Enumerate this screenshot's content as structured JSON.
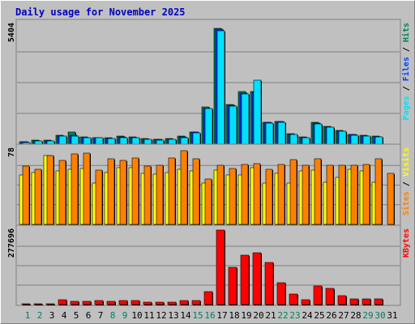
{
  "title": "Daily usage for November 2025",
  "colors": {
    "background": "#c0c0c0",
    "hits": "#00805c",
    "files": "#0040ff",
    "pages": "#00e0ff",
    "visits": "#ffff00",
    "sites": "#ff8000",
    "kbytes": "#ff0000",
    "weekend_day": "#00805c",
    "weekday": "#000000",
    "title": "#0000c0"
  },
  "chart_data": [
    {
      "type": "bar",
      "panel": "hits-files-pages",
      "ylabel_parts": [
        {
          "text": "Pages",
          "color": "#00e0ff"
        },
        {
          "text": " / ",
          "color": "#000000"
        },
        {
          "text": "Files",
          "color": "#0040ff"
        },
        {
          "text": " / ",
          "color": "#000000"
        },
        {
          "text": "Hits",
          "color": "#00805c"
        }
      ],
      "max_label": "5404",
      "ylim": [
        0,
        5404
      ],
      "categories": [
        "1",
        "2",
        "3",
        "4",
        "5",
        "6",
        "7",
        "8",
        "9",
        "10",
        "11",
        "12",
        "13",
        "14",
        "15",
        "16",
        "17",
        "18",
        "19",
        "20",
        "21",
        "22",
        "23",
        "24",
        "25",
        "26",
        "27",
        "28",
        "29",
        "30",
        "31"
      ],
      "series": [
        {
          "name": "Hits",
          "values": [
            110,
            180,
            170,
            390,
            530,
            330,
            310,
            290,
            360,
            340,
            250,
            230,
            250,
            360,
            560,
            1680,
            5230,
            1800,
            2380,
            2380,
            1000,
            1040,
            470,
            330,
            990,
            800,
            620,
            440,
            390,
            360,
            0
          ]
        },
        {
          "name": "Files",
          "values": [
            100,
            160,
            150,
            360,
            400,
            300,
            290,
            270,
            330,
            310,
            230,
            210,
            230,
            330,
            530,
            1620,
            5180,
            1750,
            2300,
            2330,
            980,
            1010,
            450,
            310,
            950,
            770,
            600,
            420,
            370,
            340,
            0
          ]
        },
        {
          "name": "Pages",
          "values": [
            90,
            150,
            140,
            350,
            380,
            290,
            280,
            260,
            310,
            290,
            220,
            200,
            220,
            310,
            510,
            1600,
            5120,
            1720,
            2260,
            2900,
            960,
            990,
            430,
            300,
            930,
            750,
            580,
            400,
            360,
            320,
            0
          ]
        }
      ]
    },
    {
      "type": "bar",
      "panel": "visits-sites",
      "ylabel_parts": [
        {
          "text": "Sites",
          "color": "#ff8000"
        },
        {
          "text": " / ",
          "color": "#000000"
        },
        {
          "text": "Visits",
          "color": "#ffff00"
        }
      ],
      "max_label": "78",
      "ylim": [
        0,
        78
      ],
      "categories": [
        "1",
        "2",
        "3",
        "4",
        "5",
        "6",
        "7",
        "8",
        "9",
        "10",
        "11",
        "12",
        "13",
        "14",
        "15",
        "16",
        "17",
        "18",
        "19",
        "20",
        "21",
        "22",
        "23",
        "24",
        "25",
        "26",
        "27",
        "28",
        "29",
        "30",
        "31"
      ],
      "series": [
        {
          "name": "Visits",
          "values": [
            51,
            54,
            71,
            55,
            57,
            58,
            43,
            54,
            59,
            59,
            53,
            52,
            54,
            57,
            55,
            43,
            56,
            51,
            51,
            59,
            43,
            53,
            43,
            55,
            56,
            44,
            49,
            57,
            55,
            44,
            0
          ]
        },
        {
          "name": "Sites",
          "values": [
            60,
            57,
            71,
            66,
            73,
            74,
            56,
            68,
            66,
            69,
            60,
            61,
            69,
            76,
            68,
            47,
            61,
            58,
            62,
            63,
            57,
            62,
            67,
            61,
            68,
            61,
            61,
            61,
            62,
            68,
            53
          ]
        }
      ]
    },
    {
      "type": "bar",
      "panel": "kbytes",
      "ylabel_parts": [
        {
          "text": "KBytes",
          "color": "#ff0000"
        }
      ],
      "max_label": "277696",
      "ylim": [
        0,
        277696
      ],
      "categories": [
        "1",
        "2",
        "3",
        "4",
        "5",
        "6",
        "7",
        "8",
        "9",
        "10",
        "11",
        "12",
        "13",
        "14",
        "15",
        "16",
        "17",
        "18",
        "19",
        "20",
        "21",
        "22",
        "23",
        "24",
        "25",
        "26",
        "27",
        "28",
        "29",
        "30",
        "31"
      ],
      "series": [
        {
          "name": "KBytes",
          "values": [
            3000,
            3000,
            3000,
            17000,
            13000,
            13000,
            14000,
            12000,
            16000,
            14000,
            9000,
            8000,
            10000,
            15000,
            16000,
            49000,
            277696,
            140000,
            183000,
            193000,
            156000,
            80000,
            38000,
            19000,
            68000,
            60000,
            33000,
            21000,
            21000,
            22000,
            0
          ]
        }
      ]
    }
  ]
}
